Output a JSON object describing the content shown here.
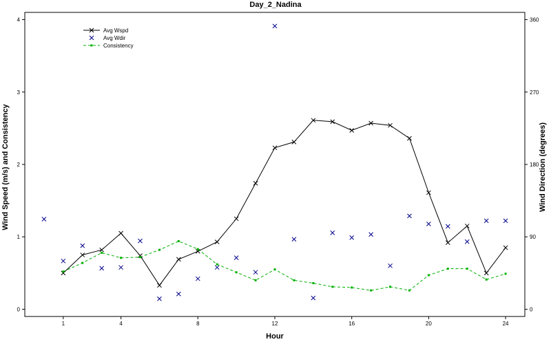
{
  "chart_data": {
    "type": "line",
    "title": "Day_2_Nadina",
    "xlabel": "Hour",
    "ylabel_left": "Wind Speed (m/s) and Consistency",
    "ylabel_right": "Wind Direction (degrees)",
    "xlim": [
      -1,
      25
    ],
    "ylim_left": [
      -0.1,
      4.1
    ],
    "ylim_right": [
      -9,
      369
    ],
    "x_ticks": [
      1,
      4,
      8,
      12,
      16,
      20,
      24
    ],
    "y_ticks_left": [
      0,
      1,
      2,
      3,
      4
    ],
    "y_ticks_right": [
      0,
      90,
      180,
      270,
      360
    ],
    "legend_position": "top-left",
    "series": [
      {
        "name": "Avg Wspd",
        "axis": "left",
        "style": "solid-line-x-marker",
        "color": "#000000",
        "x": [
          1,
          2,
          3,
          4,
          5,
          6,
          7,
          8,
          9,
          10,
          11,
          12,
          13,
          14,
          15,
          16,
          17,
          18,
          19,
          20,
          21,
          22,
          23,
          24
        ],
        "y": [
          0.5,
          0.75,
          0.82,
          1.05,
          0.74,
          0.33,
          0.69,
          0.8,
          0.93,
          1.25,
          1.74,
          2.23,
          2.31,
          2.61,
          2.59,
          2.47,
          2.57,
          2.54,
          2.36,
          1.61,
          0.92,
          1.15,
          0.5,
          0.85
        ]
      },
      {
        "name": "Avg Wdir",
        "axis": "right",
        "style": "x-marker",
        "color": "#00008b",
        "x": [
          0,
          1,
          2,
          3,
          4,
          5,
          6,
          7,
          8,
          9,
          10,
          11,
          12,
          13,
          14,
          15,
          16,
          17,
          18,
          19,
          20,
          21,
          22,
          23,
          24
        ],
        "y": [
          112,
          60,
          79,
          51,
          52,
          85,
          13,
          19,
          38,
          52,
          64,
          46,
          352,
          87,
          14,
          95,
          89,
          93,
          54,
          116,
          106,
          103,
          84,
          110,
          110
        ]
      },
      {
        "name": "Consistency",
        "axis": "left",
        "style": "dashed-line-square-marker",
        "color": "#00b000",
        "x": [
          1,
          2,
          3,
          4,
          5,
          6,
          7,
          8,
          9,
          10,
          11,
          12,
          13,
          14,
          15,
          16,
          17,
          18,
          19,
          20,
          21,
          22,
          23,
          24
        ],
        "y": [
          0.52,
          0.64,
          0.78,
          0.71,
          0.72,
          0.82,
          0.94,
          0.83,
          0.62,
          0.51,
          0.4,
          0.55,
          0.4,
          0.36,
          0.31,
          0.3,
          0.26,
          0.31,
          0.26,
          0.47,
          0.56,
          0.56,
          0.41,
          0.49
        ]
      }
    ]
  }
}
